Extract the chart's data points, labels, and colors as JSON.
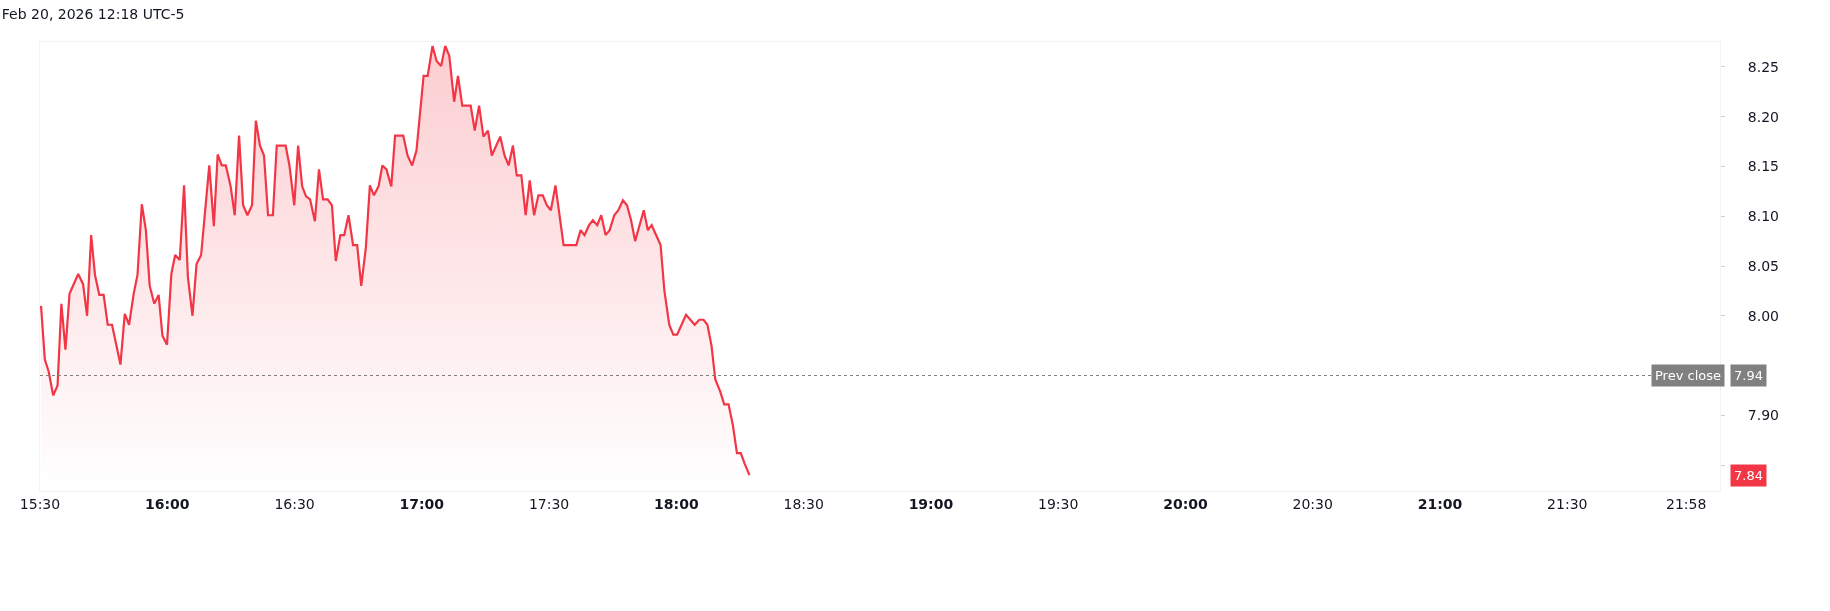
{
  "chart_data": {
    "type": "area",
    "title": "Feb 20, 2026 12:18 UTC-5",
    "x": [
      15.504,
      15.519,
      15.534,
      15.552,
      15.569,
      15.584,
      15.6,
      15.616,
      15.65,
      15.669,
      15.685,
      15.701,
      15.716,
      15.733,
      15.75,
      15.766,
      15.783,
      15.816,
      15.833,
      15.85,
      15.868,
      15.883,
      15.9,
      15.916,
      15.931,
      15.949,
      15.966,
      15.981,
      15.999,
      16.016,
      16.031,
      16.049,
      16.066,
      16.081,
      16.099,
      16.115,
      16.133,
      16.165,
      16.183,
      16.198,
      16.214,
      16.23,
      16.249,
      16.265,
      16.282,
      16.298,
      16.315,
      16.333,
      16.348,
      16.364,
      16.38,
      16.396,
      16.415,
      16.43,
      16.465,
      16.48,
      16.499,
      16.514,
      16.53,
      16.545,
      16.561,
      16.58,
      16.596,
      16.612,
      16.63,
      16.647,
      16.662,
      16.68,
      16.695,
      16.712,
      16.73,
      16.746,
      16.762,
      16.78,
      16.796,
      16.812,
      16.83,
      16.845,
      16.861,
      16.88,
      16.895,
      16.927,
      16.944,
      16.962,
      16.979,
      17.007,
      17.023,
      17.042,
      17.058,
      17.076,
      17.092,
      17.108,
      17.127,
      17.142,
      17.159,
      17.192,
      17.208,
      17.225,
      17.242,
      17.26,
      17.275,
      17.308,
      17.325,
      17.341,
      17.358,
      17.373,
      17.391,
      17.408,
      17.424,
      17.441,
      17.458,
      17.475,
      17.491,
      17.507,
      17.525,
      17.557,
      17.607,
      17.624,
      17.639,
      17.657,
      17.672,
      17.689,
      17.705,
      17.722,
      17.738,
      17.756,
      17.772,
      17.79,
      17.806,
      17.822,
      17.838,
      17.872,
      17.888,
      17.903,
      17.938,
      17.953,
      17.972,
      17.988,
      18.003,
      18.038,
      18.072,
      18.09,
      18.107,
      18.122,
      18.138,
      18.153,
      18.172,
      18.188,
      18.205,
      18.222,
      18.238,
      18.253,
      18.269,
      18.287
    ],
    "series": [
      {
        "color": "#f23645",
        "values": [
          8.01,
          7.956,
          7.944,
          7.92,
          7.93,
          8.012,
          7.966,
          8.022,
          8.042,
          8.032,
          8.0,
          8.081,
          8.041,
          8.021,
          8.021,
          7.991,
          7.991,
          7.951,
          8.002,
          7.991,
          8.022,
          8.041,
          8.112,
          8.086,
          8.03,
          8.012,
          8.021,
          7.98,
          7.971,
          8.042,
          8.061,
          8.056,
          8.131,
          8.039,
          8.0,
          8.052,
          8.061,
          8.151,
          8.09,
          8.162,
          8.151,
          8.151,
          8.13,
          8.101,
          8.181,
          8.111,
          8.101,
          8.111,
          8.196,
          8.171,
          8.161,
          8.101,
          8.101,
          8.171,
          8.171,
          8.151,
          8.111,
          8.171,
          8.13,
          8.12,
          8.117,
          8.095,
          8.147,
          8.117,
          8.117,
          8.111,
          8.055,
          8.081,
          8.081,
          8.101,
          8.071,
          8.071,
          8.03,
          8.068,
          8.131,
          8.121,
          8.13,
          8.151,
          8.147,
          8.13,
          8.181,
          8.181,
          8.161,
          8.151,
          8.166,
          8.241,
          8.241,
          8.271,
          8.256,
          8.251,
          8.271,
          8.261,
          8.215,
          8.241,
          8.211,
          8.211,
          8.186,
          8.211,
          8.18,
          8.186,
          8.161,
          8.18,
          8.161,
          8.151,
          8.171,
          8.141,
          8.141,
          8.101,
          8.136,
          8.101,
          8.121,
          8.121,
          8.111,
          8.106,
          8.131,
          8.071,
          8.071,
          8.086,
          8.081,
          8.091,
          8.096,
          8.091,
          8.101,
          8.081,
          8.086,
          8.101,
          8.106,
          8.116,
          8.111,
          8.096,
          8.075,
          8.106,
          8.086,
          8.091,
          8.071,
          8.025,
          7.991,
          7.981,
          7.981,
          8.001,
          7.991,
          7.996,
          7.996,
          7.991,
          7.97,
          7.936,
          7.924,
          7.911,
          7.911,
          7.89,
          7.862,
          7.862,
          7.851,
          7.84
        ]
      }
    ],
    "xlim": [
      15.5,
      22.1
    ],
    "xticks": [
      {
        "value": 15.5,
        "label": "15:30"
      },
      {
        "value": 16,
        "label": "16:00"
      },
      {
        "value": 16.5,
        "label": "16:30"
      },
      {
        "value": 17,
        "label": "17:00"
      },
      {
        "value": 17.5,
        "label": "17:30"
      },
      {
        "value": 18,
        "label": "18:00"
      },
      {
        "value": 18.5,
        "label": "18:30"
      },
      {
        "value": 19,
        "label": "19:00"
      },
      {
        "value": 19.5,
        "label": "19:30"
      },
      {
        "value": 20,
        "label": "20:00"
      },
      {
        "value": 20.5,
        "label": "20:30"
      },
      {
        "value": 21,
        "label": "21:00"
      },
      {
        "value": 21.5,
        "label": "21:30"
      },
      {
        "value": 21.967,
        "label": "21:58"
      }
    ],
    "ylim": [
      7.824,
      8.275
    ],
    "yticks": [
      {
        "value": 7.85,
        "label": null
      },
      {
        "value": 7.9,
        "label": "7.90"
      },
      {
        "value": 7.95,
        "label": null
      },
      {
        "value": 8,
        "label": "8.00"
      },
      8.05,
      {
        "value": 8.1,
        "label": "8.10"
      },
      8.15,
      {
        "value": 8.2,
        "label": "8.20"
      },
      8.25
    ],
    "ref_lines": [
      {
        "axis": "y",
        "value": 7.94,
        "label": "Prev close",
        "color": "#808080",
        "line_style": "dotted"
      }
    ],
    "annotations": [
      "7.94",
      "7.84"
    ],
    "grid": false,
    "marker": "none"
  }
}
